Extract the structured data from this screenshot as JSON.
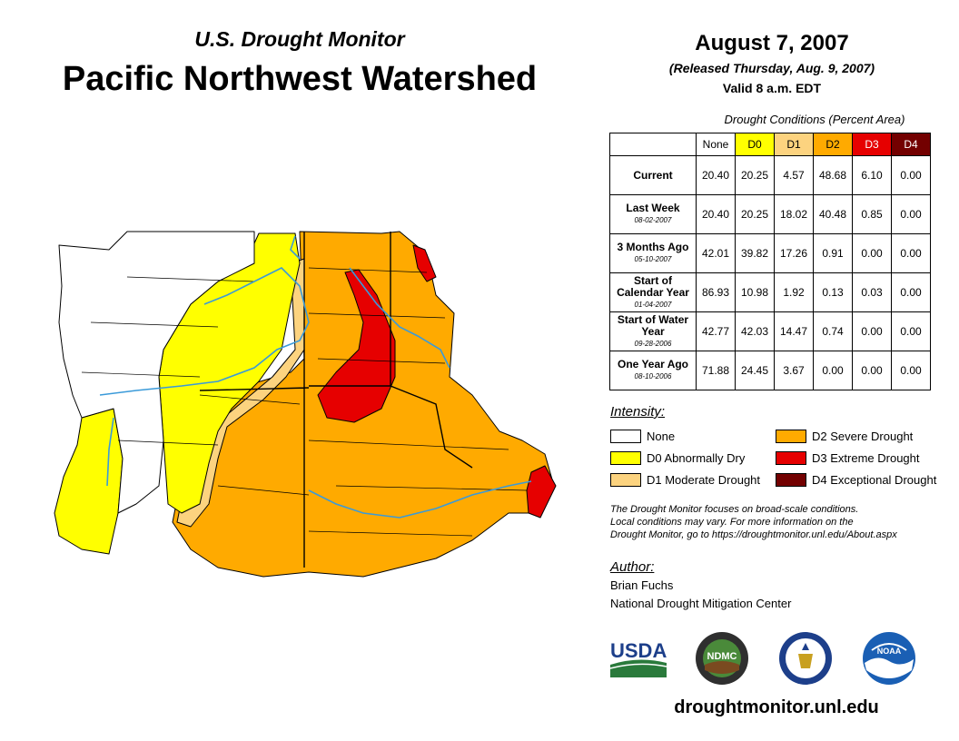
{
  "header": {
    "subtitle": "U.S. Drought Monitor",
    "title": "Pacific Northwest Watershed"
  },
  "date_block": {
    "date": "August 7, 2007",
    "released": "(Released Thursday, Aug. 9, 2007)",
    "valid": "Valid 8 a.m. EDT"
  },
  "stats_table": {
    "caption": "Drought Conditions (Percent Area)",
    "columns": [
      {
        "label": "None",
        "color": "#ffffff",
        "text_color": "#000000"
      },
      {
        "label": "D0",
        "color": "#ffff00",
        "text_color": "#000000"
      },
      {
        "label": "D1",
        "color": "#fcd37f",
        "text_color": "#000000"
      },
      {
        "label": "D2",
        "color": "#ffaa00",
        "text_color": "#000000"
      },
      {
        "label": "D3",
        "color": "#e60000",
        "text_color": "#ffffff"
      },
      {
        "label": "D4",
        "color": "#730000",
        "text_color": "#ffffff"
      }
    ],
    "rows": [
      {
        "label": "Current",
        "date": "",
        "values": [
          "20.40",
          "20.25",
          "4.57",
          "48.68",
          "6.10",
          "0.00"
        ]
      },
      {
        "label": "Last Week",
        "date": "08-02-2007",
        "values": [
          "20.40",
          "20.25",
          "18.02",
          "40.48",
          "0.85",
          "0.00"
        ]
      },
      {
        "label": "3 Months Ago",
        "date": "05-10-2007",
        "values": [
          "42.01",
          "39.82",
          "17.26",
          "0.91",
          "0.00",
          "0.00"
        ]
      },
      {
        "label": "Start of Calendar Year",
        "date": "01-04-2007",
        "values": [
          "86.93",
          "10.98",
          "1.92",
          "0.13",
          "0.03",
          "0.00"
        ]
      },
      {
        "label": "Start of Water Year",
        "date": "09-28-2006",
        "values": [
          "42.77",
          "42.03",
          "14.47",
          "0.74",
          "0.00",
          "0.00"
        ]
      },
      {
        "label": "One Year Ago",
        "date": "08-10-2006",
        "values": [
          "71.88",
          "24.45",
          "3.67",
          "0.00",
          "0.00",
          "0.00"
        ]
      }
    ]
  },
  "legend": {
    "heading": "Intensity:",
    "items": [
      {
        "label": "None",
        "color": "#ffffff"
      },
      {
        "label": "D0 Abnormally Dry",
        "color": "#ffff00"
      },
      {
        "label": "D1 Moderate Drought",
        "color": "#fcd37f"
      },
      {
        "label": "D2 Severe Drought",
        "color": "#ffaa00"
      },
      {
        "label": "D3 Extreme Drought",
        "color": "#e60000"
      },
      {
        "label": "D4 Exceptional Drought",
        "color": "#730000"
      }
    ]
  },
  "note": {
    "line1": "The Drought Monitor focuses on broad-scale conditions.",
    "line2": "Local conditions may vary. For more information on the",
    "line3": "Drought Monitor, go to https://droughtmonitor.unl.edu/About.aspx"
  },
  "author": {
    "heading": "Author:",
    "name": "Brian Fuchs",
    "org": "National Drought Mitigation Center"
  },
  "logos": {
    "usda": "USDA",
    "ndmc": "NDMC",
    "noaa": "NOAA"
  },
  "footer": {
    "url": "droughtmonitor.unl.edu"
  },
  "map_colors": {
    "none": "#ffffff",
    "d0": "#ffff00",
    "d1": "#fcd37f",
    "d2": "#ffaa00",
    "d3": "#e60000",
    "river": "#3a9ad9"
  }
}
